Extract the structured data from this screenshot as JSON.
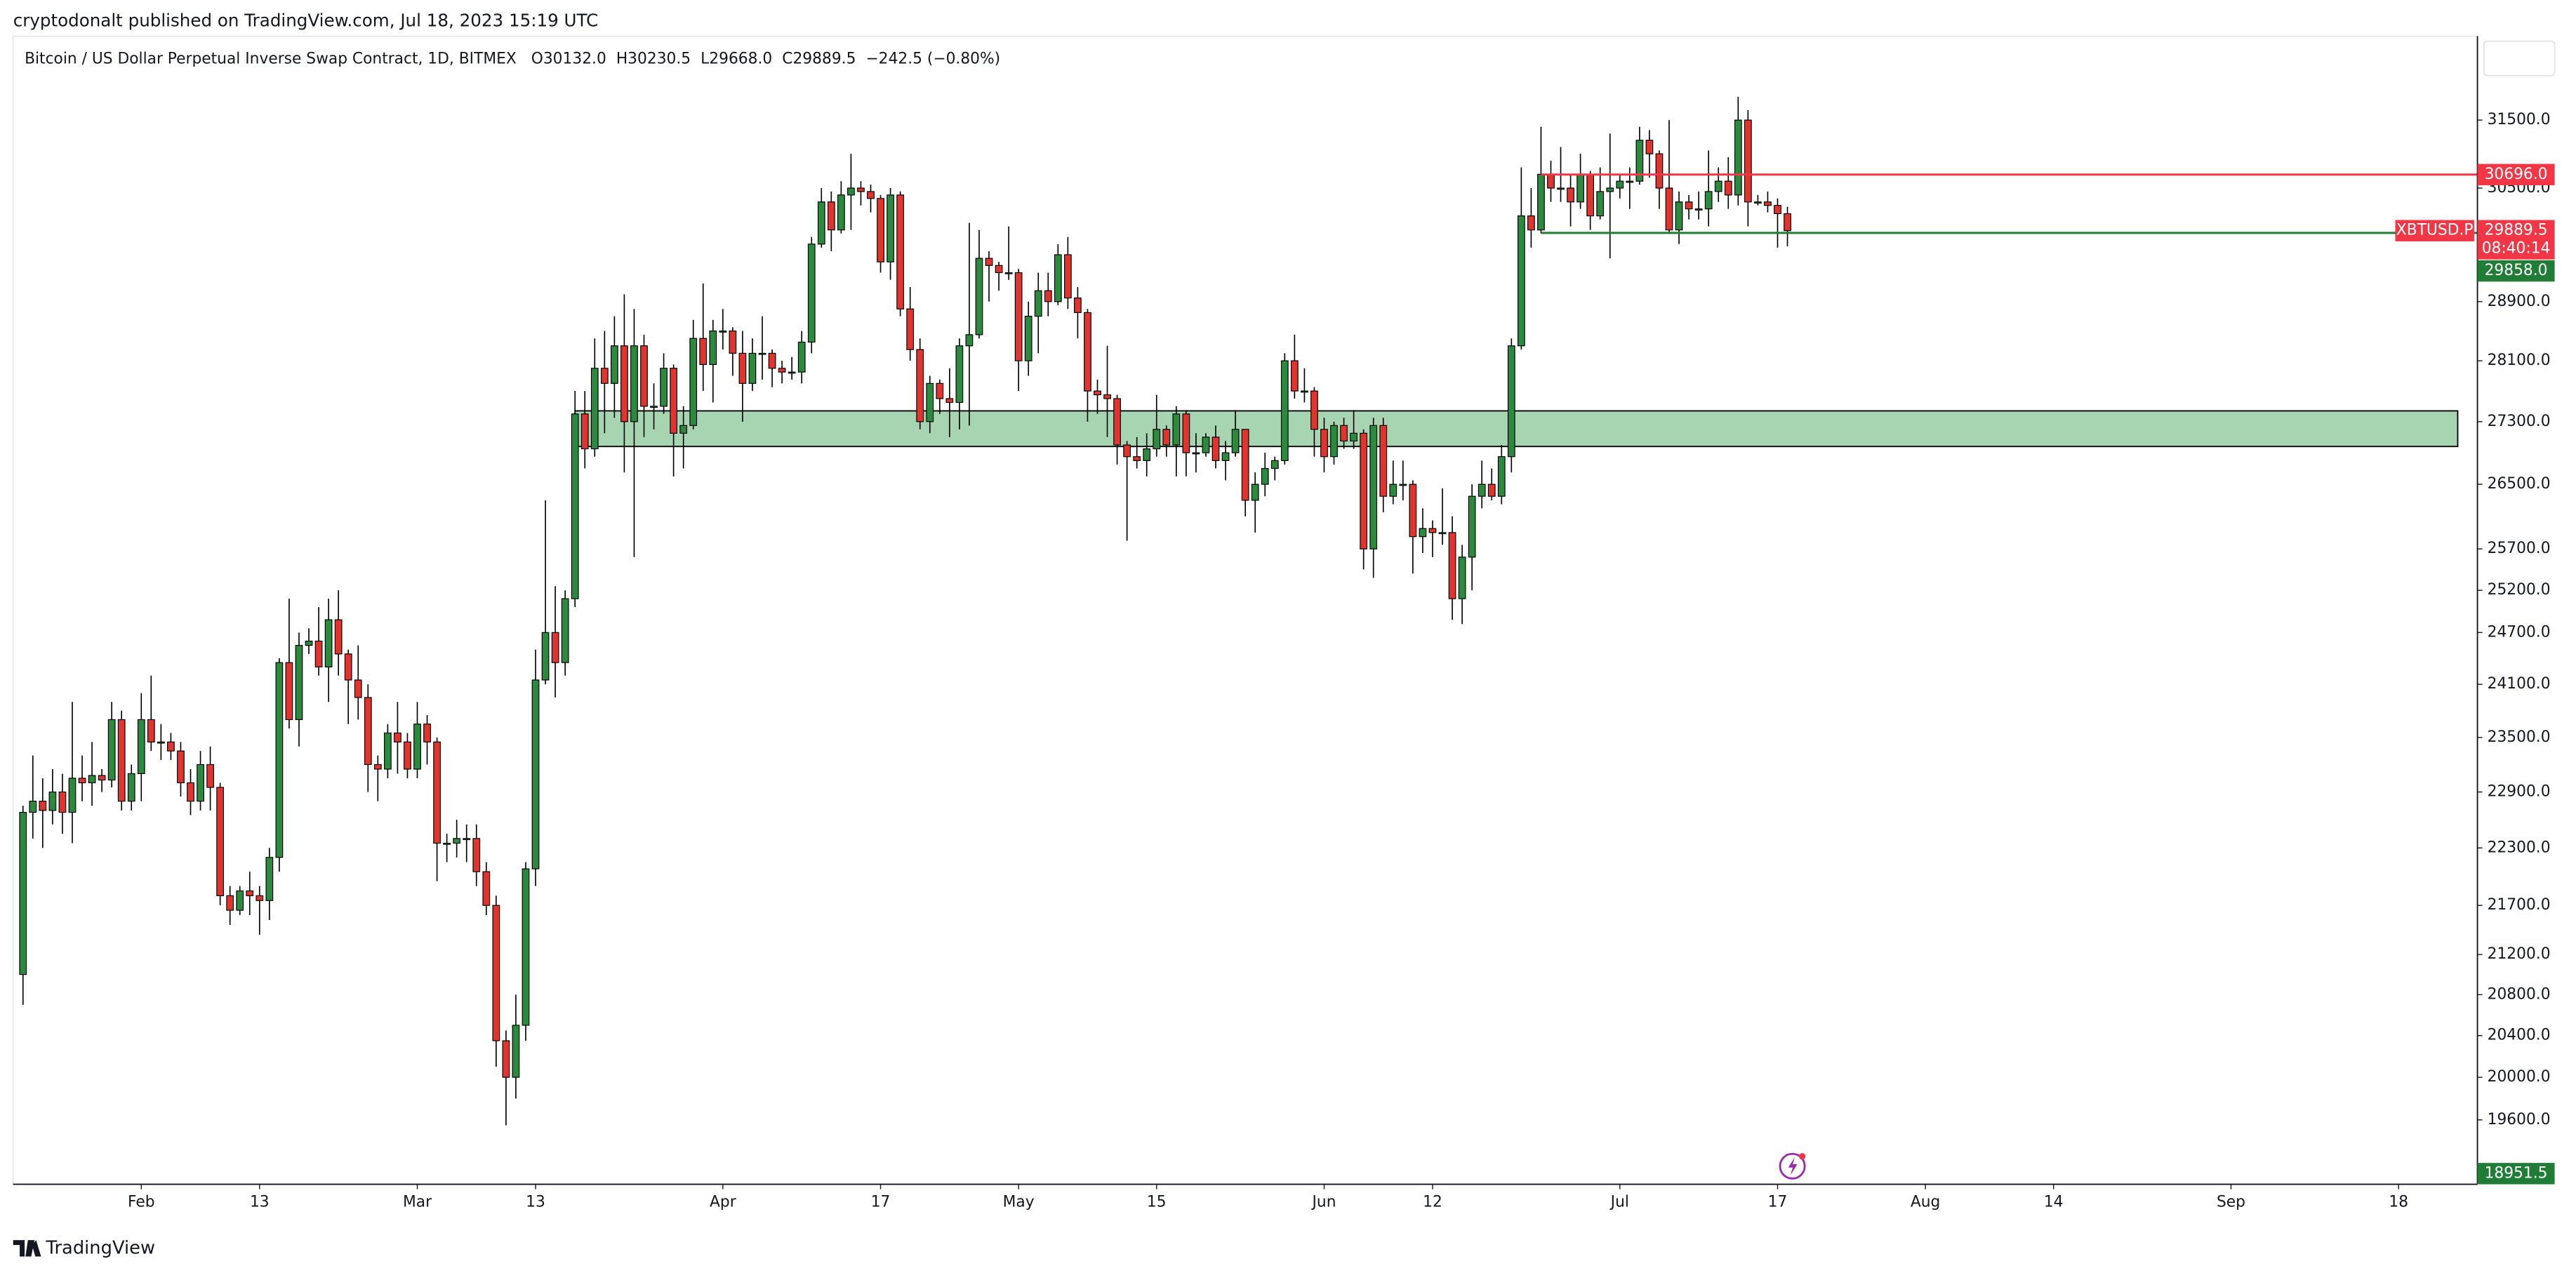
{
  "header": {
    "published": "cryptodonalt published on TradingView.com, Jul 18, 2023 15:19 UTC"
  },
  "chart_data": {
    "type": "candlestick",
    "title": "Bitcoin / US Dollar Perpetual Inverse Swap Contract, 1D, BITMEX",
    "legend_values": [
      "O30132.0",
      "H30230.5",
      "L29668.0",
      "C29889.5",
      "−242.5 (−0.80%)"
    ],
    "x": [
      "2023-01-20",
      "2023-01-21",
      "2023-01-22",
      "2023-01-23",
      "2023-01-24",
      "2023-01-25",
      "2023-01-26",
      "2023-01-27",
      "2023-01-28",
      "2023-01-29",
      "2023-01-30",
      "2023-01-31",
      "2023-02-01",
      "2023-02-02",
      "2023-02-03",
      "2023-02-04",
      "2023-02-05",
      "2023-02-06",
      "2023-02-07",
      "2023-02-08",
      "2023-02-09",
      "2023-02-10",
      "2023-02-11",
      "2023-02-12",
      "2023-02-13",
      "2023-02-14",
      "2023-02-15",
      "2023-02-16",
      "2023-02-17",
      "2023-02-18",
      "2023-02-19",
      "2023-02-20",
      "2023-02-21",
      "2023-02-22",
      "2023-02-23",
      "2023-02-24",
      "2023-02-25",
      "2023-02-26",
      "2023-02-27",
      "2023-02-28",
      "2023-03-01",
      "2023-03-02",
      "2023-03-03",
      "2023-03-04",
      "2023-03-05",
      "2023-03-06",
      "2023-03-07",
      "2023-03-08",
      "2023-03-09",
      "2023-03-10",
      "2023-03-11",
      "2023-03-12",
      "2023-03-13",
      "2023-03-14",
      "2023-03-15",
      "2023-03-16",
      "2023-03-17",
      "2023-03-18",
      "2023-03-19",
      "2023-03-20",
      "2023-03-21",
      "2023-03-22",
      "2023-03-23",
      "2023-03-24",
      "2023-03-25",
      "2023-03-26",
      "2023-03-27",
      "2023-03-28",
      "2023-03-29",
      "2023-03-30",
      "2023-03-31",
      "2023-04-01",
      "2023-04-02",
      "2023-04-03",
      "2023-04-04",
      "2023-04-05",
      "2023-04-06",
      "2023-04-07",
      "2023-04-08",
      "2023-04-09",
      "2023-04-10",
      "2023-04-11",
      "2023-04-12",
      "2023-04-13",
      "2023-04-14",
      "2023-04-15",
      "2023-04-16",
      "2023-04-17",
      "2023-04-18",
      "2023-04-19",
      "2023-04-20",
      "2023-04-21",
      "2023-04-22",
      "2023-04-23",
      "2023-04-24",
      "2023-04-25",
      "2023-04-26",
      "2023-04-27",
      "2023-04-28",
      "2023-04-29",
      "2023-04-30",
      "2023-05-01",
      "2023-05-02",
      "2023-05-03",
      "2023-05-04",
      "2023-05-05",
      "2023-05-06",
      "2023-05-07",
      "2023-05-08",
      "2023-05-09",
      "2023-05-10",
      "2023-05-11",
      "2023-05-12",
      "2023-05-13",
      "2023-05-14",
      "2023-05-15",
      "2023-05-16",
      "2023-05-17",
      "2023-05-18",
      "2023-05-19",
      "2023-05-20",
      "2023-05-21",
      "2023-05-22",
      "2023-05-23",
      "2023-05-24",
      "2023-05-25",
      "2023-05-26",
      "2023-05-27",
      "2023-05-28",
      "2023-05-29",
      "2023-05-30",
      "2023-05-31",
      "2023-06-01",
      "2023-06-02",
      "2023-06-03",
      "2023-06-04",
      "2023-06-05",
      "2023-06-06",
      "2023-06-07",
      "2023-06-08",
      "2023-06-09",
      "2023-06-10",
      "2023-06-11",
      "2023-06-12",
      "2023-06-13",
      "2023-06-14",
      "2023-06-15",
      "2023-06-16",
      "2023-06-17",
      "2023-06-18",
      "2023-06-19",
      "2023-06-20",
      "2023-06-21",
      "2023-06-22",
      "2023-06-23",
      "2023-06-24",
      "2023-06-25",
      "2023-06-26",
      "2023-06-27",
      "2023-06-28",
      "2023-06-29",
      "2023-06-30",
      "2023-07-01",
      "2023-07-02",
      "2023-07-03",
      "2023-07-04",
      "2023-07-05",
      "2023-07-06",
      "2023-07-07",
      "2023-07-08",
      "2023-07-09",
      "2023-07-10",
      "2023-07-11",
      "2023-07-12",
      "2023-07-13",
      "2023-07-14",
      "2023-07-15",
      "2023-07-16",
      "2023-07-17",
      "2023-07-18"
    ],
    "open": [
      21000,
      22680,
      22800,
      22700,
      22900,
      22680,
      23050,
      23000,
      23080,
      23030,
      23700,
      22800,
      23100,
      23700,
      23450,
      23450,
      23350,
      23000,
      22800,
      23200,
      22950,
      21800,
      21650,
      21850,
      21800,
      21750,
      22200,
      24350,
      23700,
      24550,
      24600,
      24300,
      24850,
      24450,
      24150,
      23950,
      23200,
      23150,
      23550,
      23450,
      23150,
      23650,
      23450,
      22350,
      22350,
      22400,
      22400,
      22050,
      21700,
      20350,
      20000,
      20500,
      22080,
      24150,
      24700,
      24350,
      25100,
      27400,
      26950,
      28000,
      27800,
      28300,
      27300,
      28300,
      27500,
      27500,
      28000,
      27150,
      27250,
      28400,
      28050,
      28500,
      28500,
      28200,
      27800,
      28200,
      28200,
      28000,
      27950,
      27950,
      28350,
      29700,
      30300,
      29900,
      30400,
      30500,
      30450,
      30350,
      29450,
      30400,
      28800,
      28250,
      27300,
      27800,
      27600,
      27550,
      28300,
      28450,
      29500,
      29400,
      29300,
      29300,
      28100,
      28700,
      29050,
      28900,
      29550,
      28950,
      28750,
      27700,
      27650,
      27600,
      27000,
      26850,
      26800,
      26950,
      27200,
      27000,
      27400,
      26900,
      26900,
      27100,
      26800,
      26900,
      27200,
      26300,
      26500,
      26700,
      26800,
      28100,
      27700,
      27700,
      27200,
      26850,
      27250,
      27050,
      27150,
      25700,
      27250,
      26350,
      26500,
      26500,
      25850,
      25950,
      25900,
      25900,
      25100,
      25600,
      26350,
      26500,
      26350,
      26850,
      28300,
      30100,
      29900,
      30700,
      30500,
      30500,
      30300,
      30700,
      30100,
      30450,
      30500,
      30600,
      30600,
      31200,
      31000,
      30500,
      29900,
      30300,
      30200,
      30200,
      30450,
      30600,
      30400,
      31500,
      30300,
      30300,
      30250,
      30132
    ],
    "high": [
      22750,
      23300,
      23050,
      23150,
      23100,
      23900,
      23300,
      23450,
      23150,
      23900,
      23800,
      23200,
      24000,
      24200,
      23650,
      23550,
      23450,
      23150,
      23350,
      23400,
      23000,
      21900,
      21900,
      22050,
      21900,
      22300,
      24400,
      25100,
      24700,
      24750,
      25000,
      25100,
      25200,
      24500,
      24550,
      24100,
      23300,
      23650,
      23900,
      23550,
      23900,
      23750,
      23500,
      22450,
      22600,
      22550,
      22550,
      22150,
      21800,
      20450,
      20800,
      22150,
      24500,
      26300,
      25250,
      25200,
      27700,
      27700,
      28400,
      28500,
      28700,
      29000,
      28800,
      28450,
      27800,
      28200,
      28050,
      27500,
      28650,
      29150,
      28650,
      28800,
      28550,
      28500,
      28400,
      28700,
      28250,
      28100,
      28150,
      28500,
      29800,
      30500,
      30450,
      30600,
      31000,
      30600,
      30550,
      30400,
      30500,
      30450,
      29100,
      28400,
      27900,
      27850,
      28000,
      28400,
      30000,
      29900,
      29600,
      29450,
      29950,
      29350,
      28900,
      29300,
      29300,
      29700,
      29800,
      29100,
      28800,
      27850,
      28300,
      27650,
      27050,
      27100,
      27150,
      27650,
      27250,
      27500,
      27450,
      27150,
      27150,
      27250,
      27050,
      27450,
      27200,
      26650,
      26900,
      26850,
      28200,
      28450,
      28000,
      27750,
      27350,
      27300,
      27350,
      27450,
      27200,
      27350,
      27350,
      26800,
      26800,
      26550,
      26200,
      26050,
      26450,
      26100,
      25750,
      26500,
      26800,
      26700,
      27000,
      28400,
      30800,
      30500,
      31400,
      30900,
      31100,
      30700,
      31000,
      30750,
      30800,
      31300,
      30700,
      30800,
      31400,
      31350,
      31050,
      31500,
      30450,
      30400,
      30450,
      31050,
      30800,
      30950,
      31850,
      31650,
      30400,
      30450,
      30350,
      30230.5
    ],
    "low": [
      20700,
      22400,
      22300,
      22550,
      22450,
      22350,
      22800,
      22750,
      22900,
      22950,
      22700,
      22700,
      22800,
      23350,
      23250,
      23250,
      22850,
      22650,
      22700,
      22700,
      21700,
      21500,
      21600,
      21600,
      21400,
      21550,
      22050,
      23600,
      23400,
      24450,
      24200,
      23900,
      24200,
      23650,
      23700,
      22900,
      22800,
      23050,
      23100,
      23050,
      23050,
      23200,
      21950,
      22150,
      22200,
      22150,
      21900,
      21600,
      20100,
      19550,
      19800,
      20350,
      21900,
      24100,
      23950,
      24200,
      25000,
      26700,
      26850,
      27150,
      27350,
      26650,
      25600,
      27100,
      27200,
      27400,
      26600,
      26700,
      27200,
      27700,
      27550,
      28250,
      27900,
      27300,
      27700,
      27850,
      27750,
      27800,
      27850,
      27800,
      28200,
      29650,
      29600,
      29850,
      29900,
      30250,
      30150,
      29300,
      29200,
      28700,
      28100,
      27200,
      27150,
      27400,
      27100,
      27200,
      27250,
      28400,
      28900,
      29050,
      29200,
      27700,
      27900,
      28200,
      28700,
      28850,
      28800,
      28400,
      27300,
      27400,
      27100,
      26750,
      25800,
      26700,
      26600,
      26850,
      26850,
      26600,
      26600,
      26650,
      26850,
      26700,
      26550,
      26850,
      26100,
      25900,
      26350,
      26550,
      26750,
      27600,
      27550,
      26850,
      26650,
      26750,
      26950,
      26950,
      25450,
      25350,
      26150,
      26250,
      26300,
      25400,
      25650,
      25600,
      25750,
      24850,
      24800,
      25200,
      26200,
      26300,
      26250,
      26650,
      28250,
      29650,
      29850,
      30300,
      30300,
      29950,
      30200,
      29900,
      30050,
      29500,
      30350,
      30200,
      30550,
      30650,
      30200,
      29850,
      29700,
      30050,
      30050,
      29950,
      30300,
      30200,
      30250,
      29950,
      30250,
      30150,
      29650,
      29668
    ],
    "close": [
      22680,
      22800,
      22700,
      22900,
      22680,
      23050,
      23000,
      23080,
      23030,
      23700,
      22800,
      23100,
      23700,
      23450,
      23450,
      23350,
      23000,
      22800,
      23200,
      22950,
      21800,
      21650,
      21850,
      21800,
      21750,
      22200,
      24350,
      23700,
      24550,
      24600,
      24300,
      24850,
      24450,
      24150,
      23950,
      23200,
      23150,
      23550,
      23450,
      23150,
      23650,
      23450,
      22350,
      22350,
      22400,
      22400,
      22050,
      21700,
      20350,
      20000,
      20500,
      22080,
      24150,
      24700,
      24350,
      25100,
      27400,
      26950,
      28000,
      27800,
      28300,
      27300,
      28300,
      27500,
      27500,
      28000,
      27150,
      27250,
      28400,
      28050,
      28500,
      28500,
      28200,
      27800,
      28200,
      28200,
      28000,
      27950,
      27950,
      28350,
      29700,
      30300,
      29900,
      30400,
      30500,
      30450,
      30350,
      29450,
      30400,
      28800,
      28250,
      27300,
      27800,
      27600,
      27550,
      28300,
      28450,
      29500,
      29400,
      29300,
      29300,
      28100,
      28700,
      29050,
      28900,
      29550,
      28950,
      28750,
      27700,
      27650,
      27600,
      27000,
      26850,
      26800,
      26950,
      27200,
      27000,
      27400,
      26900,
      26900,
      27100,
      26800,
      26900,
      27200,
      26300,
      26500,
      26700,
      26800,
      28100,
      27700,
      27700,
      27200,
      26850,
      27250,
      27050,
      27150,
      25700,
      27250,
      26350,
      26500,
      26500,
      25850,
      25950,
      25900,
      25900,
      25100,
      25600,
      26350,
      26500,
      26350,
      26850,
      28300,
      30100,
      29900,
      30700,
      30500,
      30500,
      30300,
      30700,
      30100,
      30450,
      30500,
      30600,
      30600,
      31200,
      31000,
      30500,
      29900,
      30300,
      30200,
      30200,
      30450,
      30600,
      30400,
      31500,
      30300,
      30300,
      30250,
      30132,
      29889.5
    ],
    "up_color": "#2b8a3e",
    "down_color": "#e0352f",
    "xlim": [
      "2023-01-19",
      "2023-09-26"
    ],
    "xticks": [
      {
        "value": "2023-02-01",
        "label": "Feb"
      },
      {
        "value": "2023-02-13",
        "label": "13"
      },
      {
        "value": "2023-03-01",
        "label": "Mar"
      },
      {
        "value": "2023-03-13",
        "label": "13"
      },
      {
        "value": "2023-04-01",
        "label": "Apr"
      },
      {
        "value": "2023-04-17",
        "label": "17"
      },
      {
        "value": "2023-05-01",
        "label": "May"
      },
      {
        "value": "2023-05-15",
        "label": "15"
      },
      {
        "value": "2023-06-01",
        "label": "Jun"
      },
      {
        "value": "2023-06-12",
        "label": "12"
      },
      {
        "value": "2023-07-01",
        "label": "Jul"
      },
      {
        "value": "2023-07-17",
        "label": "17"
      },
      {
        "value": "2023-08-01",
        "label": "Aug"
      },
      {
        "value": "2023-08-14",
        "label": "14"
      },
      {
        "value": "2023-09-01",
        "label": "Sep"
      },
      {
        "value": "2023-09-18",
        "label": "18"
      }
    ],
    "ylim": [
      19010,
      32780
    ],
    "log_scale": true,
    "yticks": [
      {
        "value": 19600,
        "label": "19600.0"
      },
      {
        "value": 20000,
        "label": "20000.0"
      },
      {
        "value": 20400,
        "label": "20400.0"
      },
      {
        "value": 20800,
        "label": "20800.0"
      },
      {
        "value": 21200,
        "label": "21200.0"
      },
      {
        "value": 21700,
        "label": "21700.0"
      },
      {
        "value": 22300,
        "label": "22300.0"
      },
      {
        "value": 22900,
        "label": "22900.0"
      },
      {
        "value": 23500,
        "label": "23500.0"
      },
      {
        "value": 24100,
        "label": "24100.0"
      },
      {
        "value": 24700,
        "label": "24700.0"
      },
      {
        "value": 25200,
        "label": "25200.0"
      },
      {
        "value": 25700,
        "label": "25700.0"
      },
      {
        "value": 26500,
        "label": "26500.0"
      },
      {
        "value": 27300,
        "label": "27300.0"
      },
      {
        "value": 28100,
        "label": "28100.0"
      },
      {
        "value": 28900,
        "label": "28900.0"
      },
      {
        "value": 30500,
        "label": "30500.0"
      },
      {
        "value": 31500,
        "label": "31500.0"
      }
    ],
    "zone": {
      "top": 27440,
      "bottom": 26980,
      "start": "2023-03-17",
      "end": "2023-09-24",
      "color": "#a8d5b1"
    },
    "price_lines": [
      {
        "value": 30696.0,
        "label": "30696.0",
        "start": "2023-06-23",
        "color": "#f23645"
      },
      {
        "value": 29858.0,
        "label": "29858.0",
        "start": "2023-06-23",
        "color": "#1f7d36"
      }
    ],
    "last_price": {
      "value": 29889.5,
      "label": "29889.5",
      "symbol": "XBTUSD.P",
      "countdown": "08:40:14",
      "color": "#f23645"
    },
    "bottom_price_label": "18951.5",
    "bottom_label_color": "#1f7d36"
  },
  "footer": {
    "brand": "TradingView"
  }
}
